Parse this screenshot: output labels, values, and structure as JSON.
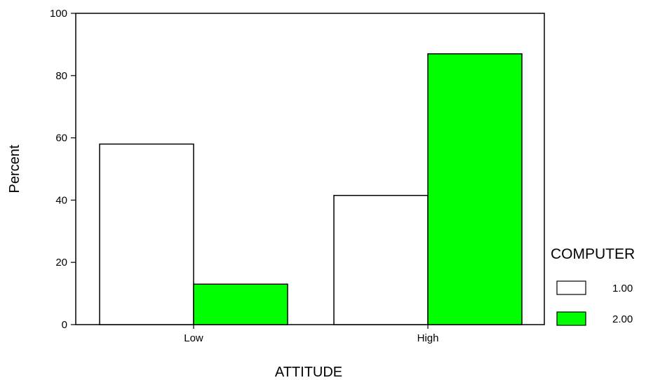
{
  "chart_data": {
    "type": "bar",
    "categories": [
      "Low",
      "High"
    ],
    "series": [
      {
        "name": "1.00",
        "values": [
          58,
          41.5
        ],
        "color": "#ffffff"
      },
      {
        "name": "2.00",
        "values": [
          13,
          87
        ],
        "color": "#00ff00"
      }
    ],
    "xlabel": "ATTITUDE",
    "ylabel": "Percent",
    "ylim": [
      0,
      100
    ],
    "yticks": [
      0,
      20,
      40,
      60,
      80,
      100
    ],
    "legend_title": "COMPUTER",
    "legend_position": "right",
    "grid": false
  }
}
